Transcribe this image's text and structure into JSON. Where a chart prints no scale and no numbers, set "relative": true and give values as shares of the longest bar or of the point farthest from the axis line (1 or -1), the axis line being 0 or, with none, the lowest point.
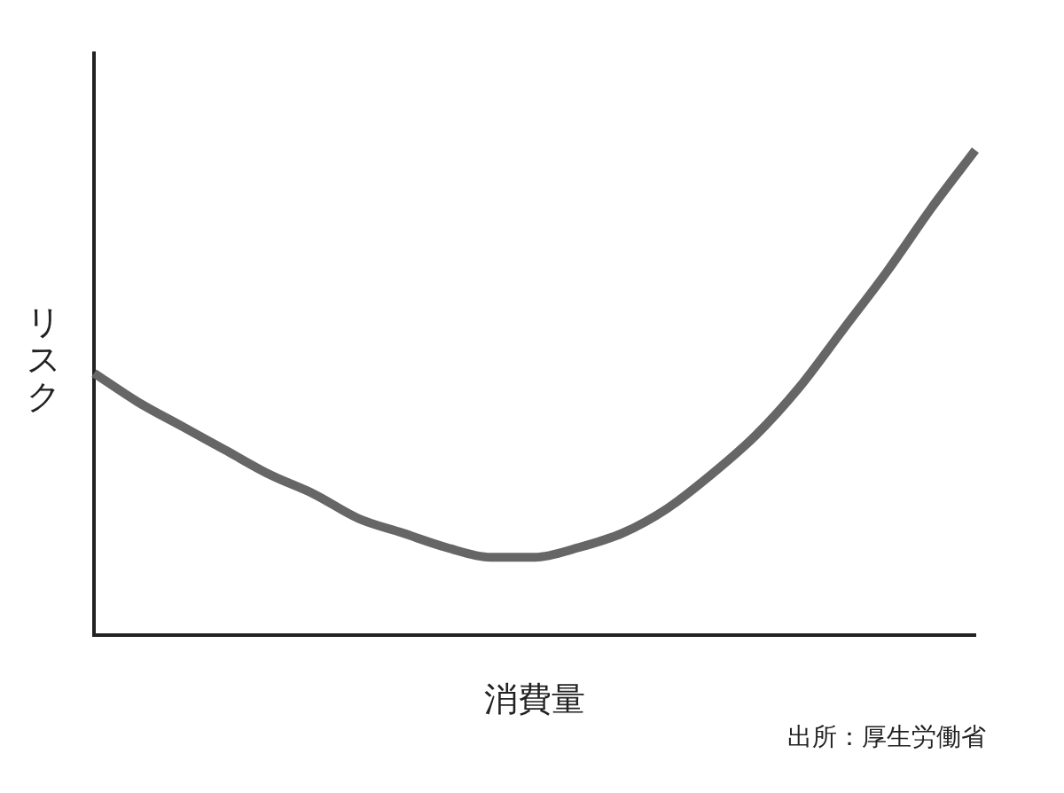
{
  "chart_data": {
    "type": "line",
    "relative": true,
    "xlabel": "消費量",
    "ylabel": "リスク",
    "annotations": [
      "出所：厚生労働省"
    ],
    "categories": [
      null,
      null,
      null,
      null,
      null,
      null,
      null,
      null,
      null,
      null,
      null,
      null,
      null,
      null,
      null,
      null,
      null,
      null,
      null,
      null,
      null
    ],
    "series": [
      {
        "color": "#666666",
        "values": [
          0.54,
          0.48,
          0.43,
          0.38,
          0.33,
          0.29,
          0.24,
          0.21,
          0.18,
          0.16,
          0.16,
          0.18,
          0.21,
          0.26,
          0.33,
          0.41,
          0.51,
          0.63,
          0.75,
          0.88,
          1
        ]
      }
    ],
    "grid": false,
    "legend": false,
    "marker": "none",
    "line_style": "solid"
  }
}
